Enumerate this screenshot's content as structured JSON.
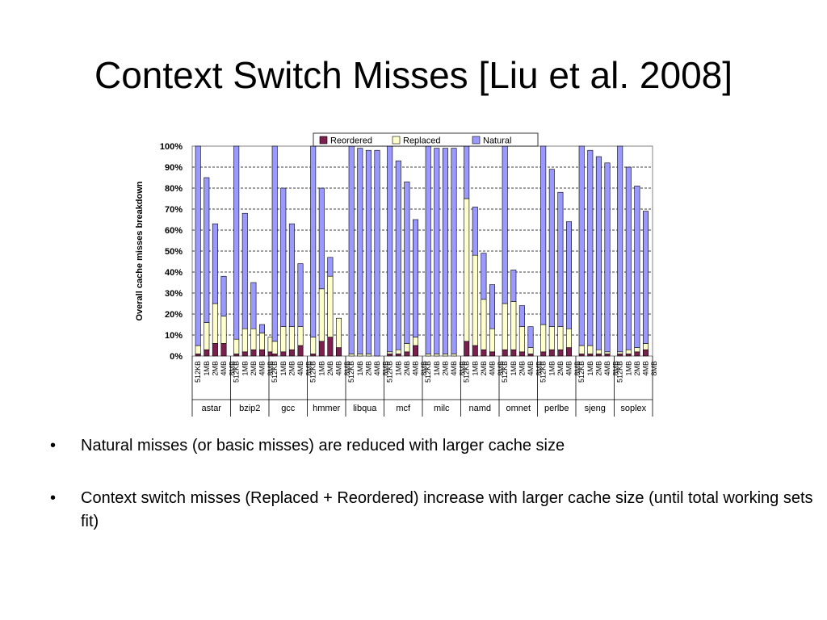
{
  "slide": {
    "title": "Context Switch Misses [Liu et al. 2008]"
  },
  "bullets": [
    {
      "marker": "•",
      "text": "Natural misses (or basic misses) are reduced with larger cache size"
    },
    {
      "marker": "•",
      "text": "Context switch misses (Replaced + Reordered) increase with larger cache size (until total working sets fit)"
    }
  ],
  "colors": {
    "reordered": "#7a1f4e",
    "replaced": "#ffffcc",
    "natural": "#9999ff"
  },
  "chart_data": {
    "type": "bar",
    "stacked": true,
    "ylabel": "Overall cache misses breakdown",
    "yticks": [
      "0%",
      "10%",
      "20%",
      "30%",
      "40%",
      "50%",
      "60%",
      "70%",
      "80%",
      "90%",
      "100%"
    ],
    "ylim": [
      0,
      100
    ],
    "grid": true,
    "legend_position": "top",
    "cache_sizes": [
      "512KB",
      "1MB",
      "2MB",
      "4MB",
      "8MB"
    ],
    "benchmarks": [
      "astar",
      "bzip2",
      "gcc",
      "hmmer",
      "libqua",
      "mcf",
      "milc",
      "namd",
      "omnet",
      "perlbe",
      "sjeng",
      "soplex"
    ],
    "series": [
      {
        "name": "Reordered",
        "values": [
          [
            1,
            3,
            6,
            6,
            0
          ],
          [
            1,
            2,
            3,
            3,
            2
          ],
          [
            1,
            2,
            3,
            5,
            0
          ],
          [
            1,
            7,
            9,
            4,
            0
          ],
          [
            0,
            0,
            0,
            0,
            0
          ],
          [
            1,
            1,
            2,
            5,
            0
          ],
          [
            0,
            0,
            0,
            0,
            0
          ],
          [
            7,
            5,
            3,
            2,
            0
          ],
          [
            3,
            3,
            2,
            1,
            0
          ],
          [
            2,
            3,
            3,
            4,
            0
          ],
          [
            1,
            1,
            1,
            1,
            0
          ],
          [
            1,
            1,
            2,
            3,
            0
          ]
        ]
      },
      {
        "name": "Replaced",
        "values": [
          [
            4,
            13,
            19,
            13,
            0
          ],
          [
            7,
            11,
            10,
            8,
            7
          ],
          [
            6,
            12,
            11,
            9,
            0
          ],
          [
            8,
            25,
            29,
            14,
            0
          ],
          [
            1,
            1,
            1,
            0,
            0
          ],
          [
            1,
            2,
            4,
            4,
            0
          ],
          [
            1,
            1,
            1,
            1,
            0
          ],
          [
            68,
            43,
            24,
            11,
            0
          ],
          [
            22,
            23,
            12,
            3,
            0
          ],
          [
            13,
            11,
            11,
            9,
            0
          ],
          [
            4,
            4,
            2,
            1,
            0
          ],
          [
            1,
            2,
            2,
            3,
            0
          ]
        ]
      },
      {
        "name": "Natural",
        "values": [
          [
            95,
            69,
            38,
            19,
            0
          ],
          [
            92,
            55,
            22,
            4,
            0
          ],
          [
            93,
            66,
            49,
            30,
            0
          ],
          [
            91,
            48,
            9,
            0,
            0
          ],
          [
            99,
            98,
            97,
            98,
            0
          ],
          [
            98,
            90,
            77,
            56,
            0
          ],
          [
            99,
            98,
            98,
            98,
            0
          ],
          [
            25,
            23,
            22,
            21,
            0
          ],
          [
            75,
            15,
            10,
            10,
            0
          ],
          [
            85,
            75,
            64,
            51,
            0
          ],
          [
            95,
            93,
            92,
            90,
            0
          ],
          [
            98,
            87,
            77,
            63,
            0
          ]
        ]
      }
    ]
  }
}
